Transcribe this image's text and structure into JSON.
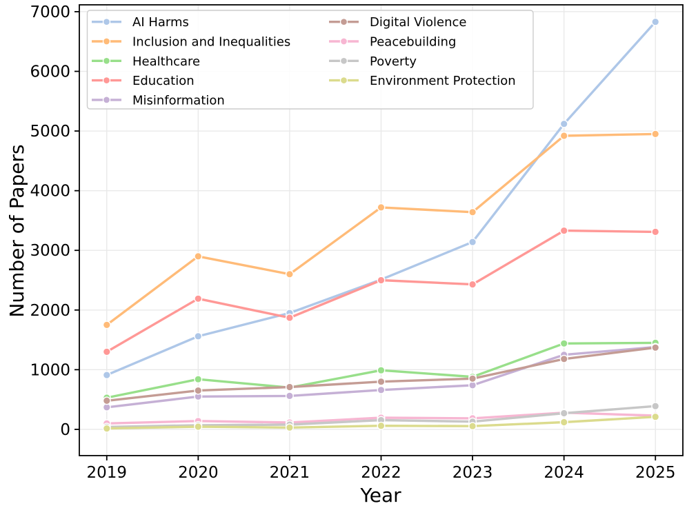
{
  "figure": {
    "background": "#ffffff",
    "text_color": "#000000",
    "grid_color": "#e9e9e9",
    "spine_color": "#000000",
    "legend_border_color": "#cccccc",
    "legend_background": "rgba(255,255,255,0.85)"
  },
  "chart_data": {
    "type": "line",
    "title": "",
    "xlabel": "Year",
    "ylabel": "Number of Papers",
    "x": [
      2019,
      2020,
      2021,
      2022,
      2023,
      2024,
      2025
    ],
    "series": [
      {
        "name": "AI Harms",
        "color": "#aec7e8",
        "values": [
          910,
          1560,
          1950,
          2510,
          3140,
          5120,
          6830
        ]
      },
      {
        "name": "Inclusion and Inequalities",
        "color": "#ffbb78",
        "values": [
          1750,
          2900,
          2600,
          3720,
          3640,
          4920,
          4950
        ]
      },
      {
        "name": "Healthcare",
        "color": "#98df8a",
        "values": [
          530,
          840,
          700,
          990,
          880,
          1440,
          1450
        ]
      },
      {
        "name": "Education",
        "color": "#ff9896",
        "values": [
          1300,
          2190,
          1870,
          2500,
          2430,
          3330,
          3310
        ]
      },
      {
        "name": "Misinformation",
        "color": "#c5b0d5",
        "values": [
          370,
          550,
          560,
          660,
          740,
          1250,
          1380
        ]
      },
      {
        "name": "Digital Violence",
        "color": "#c49c94",
        "values": [
          480,
          650,
          710,
          800,
          850,
          1180,
          1370
        ]
      },
      {
        "name": "Peacebuilding",
        "color": "#f7b6d2",
        "values": [
          100,
          140,
          115,
          195,
          185,
          280,
          230
        ]
      },
      {
        "name": "Poverty",
        "color": "#c7c7c7",
        "values": [
          40,
          70,
          80,
          155,
          130,
          270,
          390
        ]
      },
      {
        "name": "Environment Protection",
        "color": "#dbdb8d",
        "values": [
          15,
          45,
          30,
          60,
          55,
          120,
          210
        ]
      }
    ],
    "axes": {
      "xlim": [
        2018.7,
        2025.3
      ],
      "ylim": [
        -440,
        7115
      ],
      "xticks": [
        2019,
        2020,
        2021,
        2022,
        2023,
        2024,
        2025
      ],
      "yticks": [
        0,
        1000,
        2000,
        3000,
        4000,
        5000,
        6000,
        7000
      ],
      "grid": true,
      "legend_position": "upper left",
      "legend_columns": 2,
      "legend_column_split": 5
    }
  }
}
